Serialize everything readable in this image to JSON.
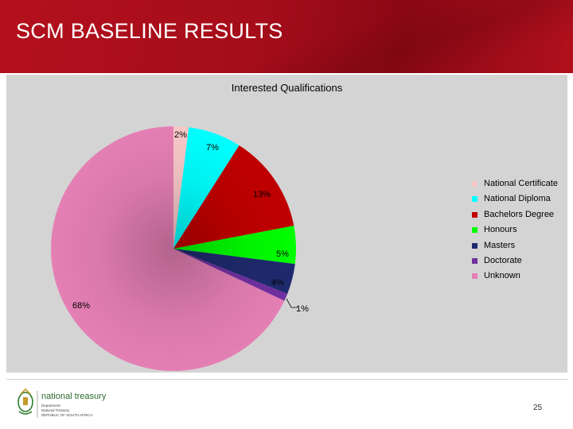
{
  "slide": {
    "title": "SCM BASELINE RESULTS",
    "page_number": "25"
  },
  "logo": {
    "name": "national treasury",
    "line1": "Department:",
    "line2": "National Treasury",
    "line3": "REPUBLIC OF SOUTH AFRICA"
  },
  "chart_data": {
    "type": "pie",
    "title": "Interested Qualifications",
    "legend_position": "right",
    "slices": [
      {
        "label": "National Certificate",
        "value": 2,
        "display": "2%",
        "color": "#f7c8c8"
      },
      {
        "label": "National Diploma",
        "value": 7,
        "display": "7%",
        "color": "#00ffff"
      },
      {
        "label": "Bachelors Degree",
        "value": 13,
        "display": "13%",
        "color": "#c00000"
      },
      {
        "label": "Honours",
        "value": 5,
        "display": "5%",
        "color": "#00ff00"
      },
      {
        "label": "Masters",
        "value": 4,
        "display": "4%",
        "color": "#1f2a6e"
      },
      {
        "label": "Doctorate",
        "value": 1,
        "display": "1%",
        "color": "#7030a0"
      },
      {
        "label": "Unknown",
        "value": 68,
        "display": "68%",
        "color": "#e47fb4"
      }
    ]
  }
}
